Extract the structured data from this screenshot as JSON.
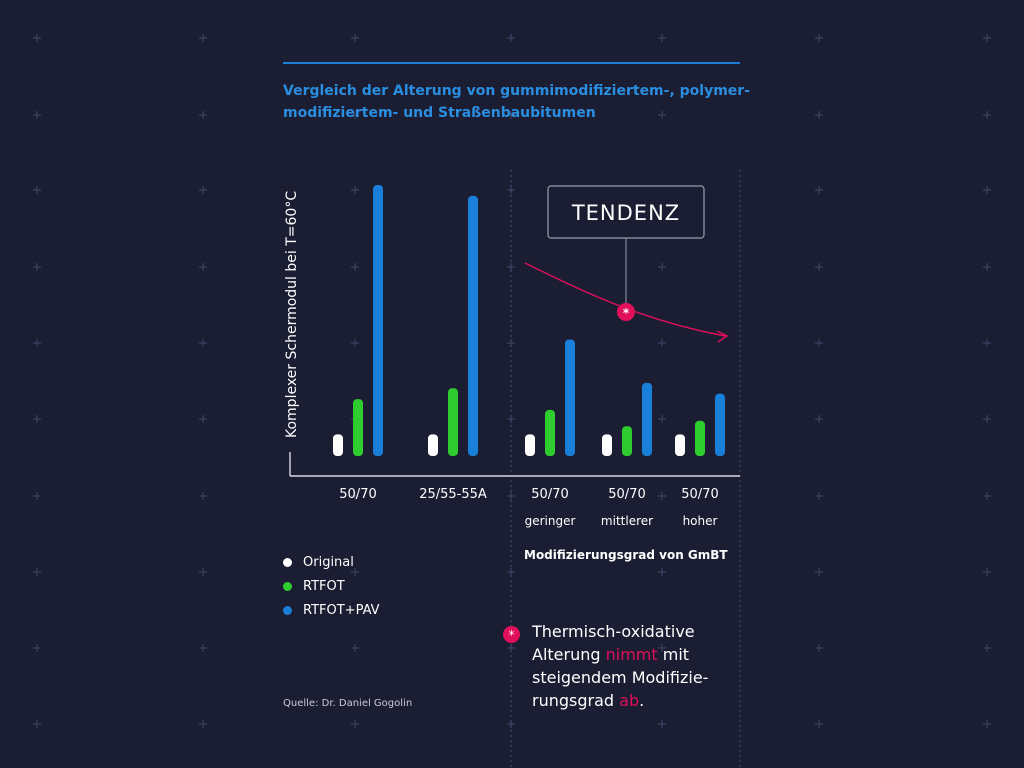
{
  "title": {
    "line1": "Vergleich der Alterung von gummimodifiziertem-, polymer-",
    "line2": "modifiziertem- und Straßenbaubitumen"
  },
  "chart_data": {
    "type": "bar",
    "ylabel": "Komplexer Schermodul bei T=60°C",
    "xlabel": "Modifizierungsgrad von GmBT",
    "categories": [
      {
        "label": "50/70",
        "sub": ""
      },
      {
        "label": "25/55-55A",
        "sub": ""
      },
      {
        "label": "50/70",
        "sub": "geringer"
      },
      {
        "label": "50/70",
        "sub": "mittlerer"
      },
      {
        "label": "50/70",
        "sub": "hoher"
      }
    ],
    "series": [
      {
        "name": "Original",
        "color": "#ffffff",
        "values": [
          8,
          8,
          8,
          8,
          8
        ]
      },
      {
        "name": "RTFOT",
        "color": "#2fcc2f",
        "values": [
          21,
          25,
          17,
          11,
          13
        ]
      },
      {
        "name": "RTFOT+PAV",
        "color": "#1a7fd8",
        "values": [
          100,
          96,
          43,
          27,
          23
        ]
      }
    ],
    "ylim": [
      0,
      100
    ],
    "grid": false,
    "legend_position": "bottom-left",
    "annotation": {
      "label": "TENDENZ",
      "marker": "*",
      "trend": "decreasing"
    }
  },
  "legend": [
    {
      "label": "Original",
      "color": "#ffffff"
    },
    {
      "label": "RTFOT",
      "color": "#2fcc2f"
    },
    {
      "label": "RTFOT+PAV",
      "color": "#1a7fd8"
    }
  ],
  "note": {
    "marker": "*",
    "line1": "Thermisch-oxidative",
    "line2_a": "Alterung ",
    "line2_b": "nimmt",
    "line2_c": " mit",
    "line3": "steigendem Modifizie-",
    "line4_a": "rungsgrad ",
    "line4_b": "ab",
    "line4_c": "."
  },
  "source": "Quelle: Dr. Daniel Gogolin",
  "colors": {
    "background": "#1b1d33",
    "accent": "#e0105a",
    "title": "#2a8ee0"
  }
}
